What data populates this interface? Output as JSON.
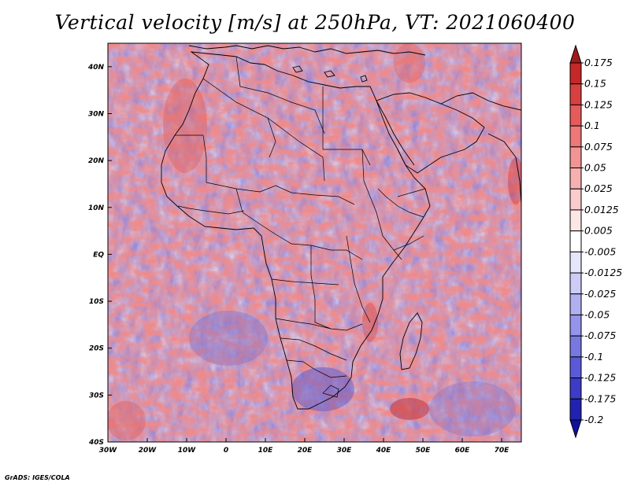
{
  "title": "Vertical velocity [m/s] at 250hPa, VT: 2021060400",
  "credit": "GrADS: IGES/COLA",
  "map": {
    "lon_range": [
      -30,
      75
    ],
    "lat_range": [
      -40,
      45
    ],
    "lon_labels": [
      "30W",
      "20W",
      "10W",
      "0",
      "10E",
      "20E",
      "30E",
      "40E",
      "50E",
      "60E",
      "70E"
    ],
    "lon_values": [
      -30,
      -20,
      -10,
      0,
      10,
      20,
      30,
      40,
      50,
      60,
      70
    ],
    "lat_labels": [
      "40N",
      "30N",
      "20N",
      "10N",
      "EQ",
      "10S",
      "20S",
      "30S",
      "40S"
    ],
    "lat_values": [
      40,
      30,
      20,
      10,
      0,
      -10,
      -20,
      -30,
      -40
    ]
  },
  "colorbar": {
    "labels": [
      "0.175",
      "0.15",
      "0.125",
      "0.1",
      "0.075",
      "0.05",
      "0.025",
      "0.0125",
      "0.005",
      "-0.005",
      "-0.0125",
      "-0.025",
      "-0.05",
      "-0.075",
      "-0.1",
      "-0.125",
      "-0.175",
      "-0.2"
    ],
    "colors": [
      "#a01a1a",
      "#c42828",
      "#d84040",
      "#e55a5a",
      "#ee7878",
      "#f39494",
      "#f7b0b0",
      "#fbcccc",
      "#fde6e6",
      "#ffffff",
      "#e6e6fb",
      "#ccccf6",
      "#b0b0f0",
      "#9494ea",
      "#7878e2",
      "#5a5ad8",
      "#3c3cc8",
      "#2222b0",
      "#1010a0"
    ]
  }
}
